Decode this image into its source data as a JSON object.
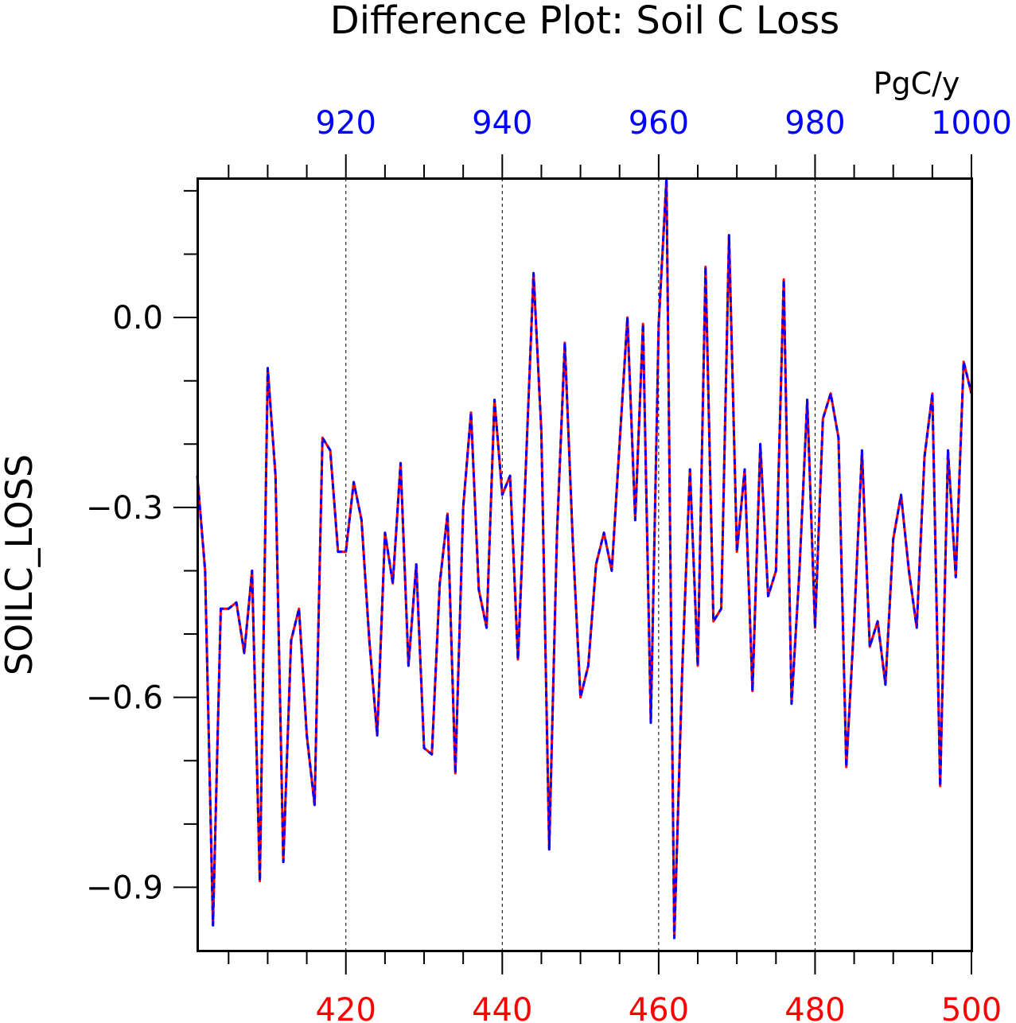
{
  "chart_data": {
    "type": "line",
    "title": "Difference Plot: Soil C Loss",
    "ylabel": "SOILC_LOSS",
    "units": "PgC/y",
    "grid": "vertical dashed",
    "xlim": [
      401,
      500
    ],
    "x_top_lim": [
      901,
      1000
    ],
    "ylim": [
      -1.0,
      0.22
    ],
    "x_ticks": [
      420,
      440,
      460,
      480,
      500
    ],
    "x_top_ticks": [
      920,
      940,
      960,
      980,
      1000
    ],
    "y_ticks": [
      "0.0",
      "-0.3",
      "-0.6",
      "-0.9"
    ],
    "y_tick_values": [
      0.0,
      -0.3,
      -0.6,
      -0.9
    ],
    "colors": {
      "bottom_axis": "#ff0000",
      "top_axis": "#0000ff",
      "series_a": "#ff0000",
      "series_b": "#0000ff",
      "axes": "#000000"
    },
    "x": [
      401,
      402,
      403,
      404,
      405,
      406,
      407,
      408,
      409,
      410,
      411,
      412,
      413,
      414,
      415,
      416,
      417,
      418,
      419,
      420,
      421,
      422,
      423,
      424,
      425,
      426,
      427,
      428,
      429,
      430,
      431,
      432,
      433,
      434,
      435,
      436,
      437,
      438,
      439,
      440,
      441,
      442,
      443,
      444,
      445,
      446,
      447,
      448,
      449,
      450,
      451,
      452,
      453,
      454,
      455,
      456,
      457,
      458,
      459,
      460,
      461,
      462,
      463,
      464,
      465,
      466,
      467,
      468,
      469,
      470,
      471,
      472,
      473,
      474,
      475,
      476,
      477,
      478,
      479,
      480,
      481,
      482,
      483,
      484,
      485,
      486,
      487,
      488,
      489,
      490,
      491,
      492,
      493,
      494,
      495,
      496,
      497,
      498,
      499,
      500
    ],
    "series": [
      {
        "values": [
          -0.25,
          -0.4,
          -0.96,
          -0.46,
          -0.46,
          -0.45,
          -0.53,
          -0.4,
          -0.89,
          -0.08,
          -0.25,
          -0.86,
          -0.51,
          -0.46,
          -0.66,
          -0.77,
          -0.19,
          -0.21,
          -0.37,
          -0.37,
          -0.26,
          -0.32,
          -0.51,
          -0.66,
          -0.34,
          -0.42,
          -0.23,
          -0.55,
          -0.39,
          -0.68,
          -0.69,
          -0.42,
          -0.31,
          -0.72,
          -0.3,
          -0.15,
          -0.43,
          -0.49,
          -0.13,
          -0.28,
          -0.25,
          -0.54,
          -0.24,
          0.07,
          -0.18,
          -0.84,
          -0.34,
          -0.04,
          -0.35,
          -0.6,
          -0.55,
          -0.39,
          -0.34,
          -0.4,
          -0.2,
          0.0,
          -0.32,
          -0.01,
          -0.64,
          -0.01,
          0.22,
          -0.98,
          -0.56,
          -0.24,
          -0.55,
          0.08,
          -0.48,
          -0.46,
          0.13,
          -0.37,
          -0.24,
          -0.59,
          -0.2,
          -0.44,
          -0.4,
          0.06,
          -0.61,
          -0.4,
          -0.13,
          -0.49,
          -0.16,
          -0.12,
          -0.19,
          -0.71,
          -0.48,
          -0.21,
          -0.52,
          -0.48,
          -0.58,
          -0.35,
          -0.28,
          -0.4,
          -0.49,
          -0.22,
          -0.12,
          -0.74,
          -0.21,
          -0.41,
          -0.07,
          -0.12
        ]
      },
      {
        "values": [
          -0.25,
          -0.4,
          -0.96,
          -0.46,
          -0.46,
          -0.45,
          -0.53,
          -0.4,
          -0.89,
          -0.08,
          -0.25,
          -0.86,
          -0.51,
          -0.46,
          -0.66,
          -0.77,
          -0.19,
          -0.21,
          -0.37,
          -0.37,
          -0.26,
          -0.32,
          -0.51,
          -0.66,
          -0.34,
          -0.42,
          -0.23,
          -0.55,
          -0.39,
          -0.68,
          -0.69,
          -0.42,
          -0.31,
          -0.72,
          -0.3,
          -0.15,
          -0.43,
          -0.49,
          -0.13,
          -0.28,
          -0.25,
          -0.54,
          -0.24,
          0.07,
          -0.18,
          -0.84,
          -0.34,
          -0.04,
          -0.35,
          -0.6,
          -0.55,
          -0.39,
          -0.34,
          -0.4,
          -0.2,
          0.0,
          -0.32,
          -0.01,
          -0.64,
          -0.01,
          0.22,
          -0.98,
          -0.56,
          -0.24,
          -0.55,
          0.08,
          -0.48,
          -0.46,
          0.13,
          -0.37,
          -0.24,
          -0.59,
          -0.2,
          -0.44,
          -0.4,
          0.06,
          -0.61,
          -0.4,
          -0.13,
          -0.49,
          -0.16,
          -0.12,
          -0.19,
          -0.71,
          -0.48,
          -0.21,
          -0.52,
          -0.48,
          -0.58,
          -0.35,
          -0.28,
          -0.4,
          -0.49,
          -0.22,
          -0.12,
          -0.74,
          -0.21,
          -0.41,
          -0.07,
          -0.12
        ]
      }
    ]
  }
}
